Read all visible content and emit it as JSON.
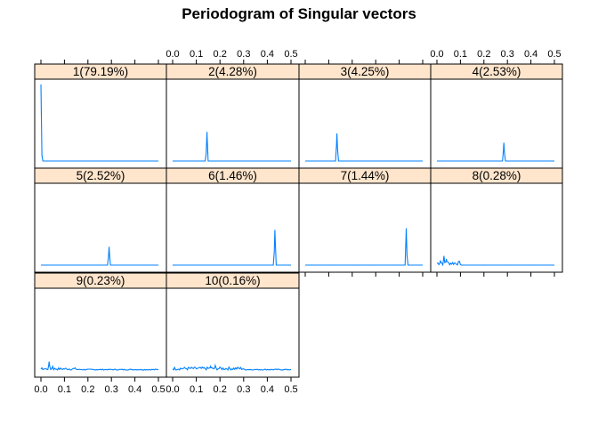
{
  "chart_data": {
    "type": "line",
    "title": "Periodogram of Singular vectors",
    "layout": {
      "columns": 4,
      "rows": 3
    },
    "x_ticks": [
      "0.0",
      "0.1",
      "0.2",
      "0.3",
      "0.4",
      "0.5"
    ],
    "xlim": [
      0,
      0.5
    ],
    "line_color": "#0080ff",
    "strip_color": "#ffe5cc",
    "panels": [
      {
        "label": "1(79.19%)",
        "peaks": [
          [
            0.0,
            1.0
          ]
        ],
        "noise": []
      },
      {
        "label": "2(4.28%)",
        "peaks": [
          [
            0.145,
            0.38
          ]
        ],
        "noise": []
      },
      {
        "label": "3(4.25%)",
        "peaks": [
          [
            0.135,
            0.36
          ]
        ],
        "noise": []
      },
      {
        "label": "4(2.53%)",
        "peaks": [
          [
            0.285,
            0.24
          ]
        ],
        "noise": []
      },
      {
        "label": "5(2.52%)",
        "peaks": [
          [
            0.29,
            0.24
          ]
        ],
        "noise": []
      },
      {
        "label": "6(1.46%)",
        "peaks": [
          [
            0.432,
            0.46
          ]
        ],
        "noise": []
      },
      {
        "label": "7(1.44%)",
        "peaks": [
          [
            0.43,
            0.48
          ]
        ],
        "noise": []
      },
      {
        "label": "8(0.28%)",
        "peaks": [
          [
            0.03,
            0.12
          ],
          [
            0.015,
            0.06
          ],
          [
            0.04,
            0.08
          ]
        ],
        "noise": [
          [
            0.0,
            0.1,
            0.05
          ]
        ]
      },
      {
        "label": "9(0.23%)",
        "peaks": [
          [
            0.035,
            0.11
          ],
          [
            0.05,
            0.05
          ]
        ],
        "noise": [
          [
            0.0,
            0.15,
            0.03
          ],
          [
            0.15,
            0.5,
            0.012
          ]
        ]
      },
      {
        "label": "10(0.16%)",
        "peaks": [
          [
            0.18,
            0.06
          ],
          [
            0.16,
            0.05
          ],
          [
            0.2,
            0.04
          ]
        ],
        "noise": [
          [
            0.0,
            0.3,
            0.04
          ],
          [
            0.3,
            0.5,
            0.012
          ]
        ]
      }
    ]
  }
}
